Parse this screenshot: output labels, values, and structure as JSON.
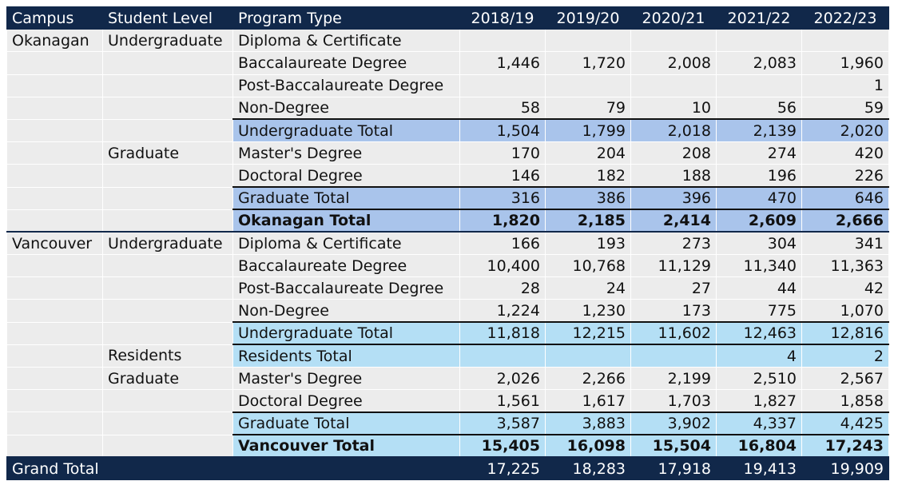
{
  "headers": {
    "campus": "Campus",
    "level": "Student Level",
    "program": "Program Type",
    "years": [
      "2018/19",
      "2019/20",
      "2020/21",
      "2021/22",
      "2022/23"
    ]
  },
  "rows": [
    {
      "campus": "Okanagan",
      "level": "Undergraduate",
      "program": "Diploma & Certificate",
      "values": [
        "",
        "",
        "",
        "",
        ""
      ],
      "kind": "data"
    },
    {
      "campus": "",
      "level": "",
      "program": "Baccalaureate Degree",
      "values": [
        "1,446",
        "1,720",
        "2,008",
        "2,083",
        "1,960"
      ],
      "kind": "data"
    },
    {
      "campus": "",
      "level": "",
      "program": "Post-Baccalaureate Degree",
      "values": [
        "",
        "",
        "",
        "",
        "1"
      ],
      "kind": "data"
    },
    {
      "campus": "",
      "level": "",
      "program": "Non-Degree",
      "values": [
        "58",
        "79",
        "10",
        "56",
        "59"
      ],
      "kind": "data"
    },
    {
      "campus": "",
      "level": "",
      "program": "Undergraduate Total",
      "values": [
        "1,504",
        "1,799",
        "2,018",
        "2,139",
        "2,020"
      ],
      "kind": "ok-sub"
    },
    {
      "campus": "",
      "level": "Graduate",
      "program": "Master's Degree",
      "values": [
        "170",
        "204",
        "208",
        "274",
        "420"
      ],
      "kind": "data"
    },
    {
      "campus": "",
      "level": "",
      "program": "Doctoral Degree",
      "values": [
        "146",
        "182",
        "188",
        "196",
        "226"
      ],
      "kind": "data"
    },
    {
      "campus": "",
      "level": "",
      "program": "Graduate Total",
      "values": [
        "316",
        "386",
        "396",
        "470",
        "646"
      ],
      "kind": "ok-sub"
    },
    {
      "campus": "",
      "level": "",
      "program": "Okanagan Total",
      "values": [
        "1,820",
        "2,185",
        "2,414",
        "2,609",
        "2,666"
      ],
      "kind": "ok-tot"
    },
    {
      "campus": "Vancouver",
      "level": "Undergraduate",
      "program": "Diploma & Certificate",
      "values": [
        "166",
        "193",
        "273",
        "304",
        "341"
      ],
      "kind": "campus-start"
    },
    {
      "campus": "",
      "level": "",
      "program": "Baccalaureate Degree",
      "values": [
        "10,400",
        "10,768",
        "11,129",
        "11,340",
        "11,363"
      ],
      "kind": "data"
    },
    {
      "campus": "",
      "level": "",
      "program": "Post-Baccalaureate Degree",
      "values": [
        "28",
        "24",
        "27",
        "44",
        "42"
      ],
      "kind": "data"
    },
    {
      "campus": "",
      "level": "",
      "program": "Non-Degree",
      "values": [
        "1,224",
        "1,230",
        "173",
        "775",
        "1,070"
      ],
      "kind": "data"
    },
    {
      "campus": "",
      "level": "",
      "program": "Undergraduate Total",
      "values": [
        "11,818",
        "12,215",
        "11,602",
        "12,463",
        "12,816"
      ],
      "kind": "va-sub"
    },
    {
      "campus": "",
      "level": "Residents",
      "program": "Residents Total",
      "values": [
        "",
        "",
        "",
        "4",
        "2"
      ],
      "kind": "va-sub"
    },
    {
      "campus": "",
      "level": "Graduate",
      "program": "Master's Degree",
      "values": [
        "2,026",
        "2,266",
        "2,199",
        "2,510",
        "2,567"
      ],
      "kind": "data"
    },
    {
      "campus": "",
      "level": "",
      "program": "Doctoral Degree",
      "values": [
        "1,561",
        "1,617",
        "1,703",
        "1,827",
        "1,858"
      ],
      "kind": "data"
    },
    {
      "campus": "",
      "level": "",
      "program": "Graduate Total",
      "values": [
        "3,587",
        "3,883",
        "3,902",
        "4,337",
        "4,425"
      ],
      "kind": "va-sub"
    },
    {
      "campus": "",
      "level": "",
      "program": "Vancouver Total",
      "values": [
        "15,405",
        "16,098",
        "15,504",
        "16,804",
        "17,243"
      ],
      "kind": "va-tot"
    }
  ],
  "grand_total": {
    "label": "Grand Total",
    "values": [
      "17,225",
      "18,283",
      "17,918",
      "19,413",
      "19,909"
    ]
  },
  "colors": {
    "header_bg": "#11284a",
    "cell_bg": "#ececec",
    "okanagan_total_bg": "#a9c4eb",
    "vancouver_total_bg": "#b4dff5"
  }
}
